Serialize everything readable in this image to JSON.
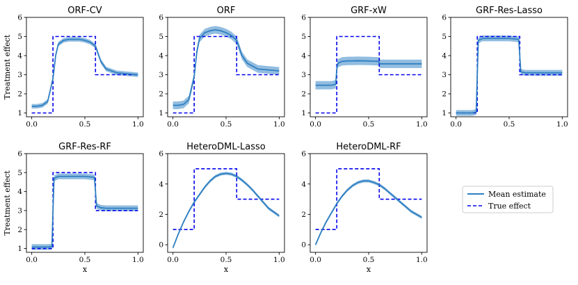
{
  "colors": {
    "mean": "#2f7fc1",
    "band": "#7fb2da",
    "true": "#0000ee",
    "axis": "#000000"
  },
  "legend": {
    "position": "center-right",
    "mean_label": "Mean estimate",
    "true_label": "True effect"
  },
  "chart_data": [
    {
      "type": "line",
      "title": "ORF-CV",
      "xlabel": "",
      "ylabel": "Treatment effect",
      "xlim": [
        -0.05,
        1.05
      ],
      "ylim": [
        0.8,
        6.0
      ],
      "xticks": [
        "0.0",
        "0.5",
        "1.0"
      ],
      "yticks": [
        "1",
        "2",
        "3",
        "4",
        "5",
        "6"
      ],
      "x": [
        0,
        0.05,
        0.1,
        0.15,
        0.2,
        0.225,
        0.25,
        0.3,
        0.35,
        0.4,
        0.45,
        0.5,
        0.55,
        0.6,
        0.65,
        0.7,
        0.8,
        0.9,
        1.0
      ],
      "mean": [
        1.35,
        1.35,
        1.4,
        1.6,
        2.8,
        4.0,
        4.6,
        4.8,
        4.85,
        4.85,
        4.85,
        4.8,
        4.7,
        4.5,
        3.7,
        3.3,
        3.1,
        3.05,
        3.0
      ],
      "band_halfwidth": 0.12,
      "true_effect": {
        "x": [
          0,
          0.2,
          0.2,
          0.6,
          0.6,
          1.0
        ],
        "y": [
          1,
          1,
          5,
          5,
          3,
          3
        ]
      }
    },
    {
      "type": "line",
      "title": "ORF",
      "xlabel": "",
      "ylabel": "",
      "xlim": [
        -0.05,
        1.05
      ],
      "ylim": [
        0.8,
        6.0
      ],
      "xticks": [
        "0.0",
        "0.5",
        "1.0"
      ],
      "yticks": [
        "1",
        "2",
        "3",
        "4",
        "5",
        "6"
      ],
      "x": [
        0,
        0.05,
        0.1,
        0.15,
        0.2,
        0.225,
        0.25,
        0.3,
        0.35,
        0.4,
        0.45,
        0.5,
        0.55,
        0.6,
        0.65,
        0.7,
        0.8,
        0.9,
        1.0
      ],
      "mean": [
        1.4,
        1.4,
        1.45,
        1.7,
        2.9,
        4.2,
        4.9,
        5.2,
        5.3,
        5.35,
        5.3,
        5.2,
        5.05,
        4.8,
        4.0,
        3.6,
        3.3,
        3.25,
        3.2
      ],
      "band_halfwidth": 0.2,
      "true_effect": {
        "x": [
          0,
          0.2,
          0.2,
          0.6,
          0.6,
          1.0
        ],
        "y": [
          1,
          1,
          5,
          5,
          3,
          3
        ]
      }
    },
    {
      "type": "line",
      "title": "GRF-xW",
      "xlabel": "",
      "ylabel": "",
      "xlim": [
        -0.05,
        1.05
      ],
      "ylim": [
        0.8,
        6.0
      ],
      "xticks": [
        "0.0",
        "0.5",
        "1.0"
      ],
      "yticks": [
        "1",
        "2",
        "3",
        "4",
        "5",
        "6"
      ],
      "x": [
        0,
        0.05,
        0.1,
        0.15,
        0.19,
        0.2,
        0.21,
        0.25,
        0.3,
        0.4,
        0.5,
        0.59,
        0.6,
        0.61,
        0.7,
        0.8,
        0.9,
        1.0
      ],
      "mean": [
        2.45,
        2.45,
        2.45,
        2.45,
        2.5,
        3.3,
        3.6,
        3.7,
        3.72,
        3.73,
        3.72,
        3.7,
        3.62,
        3.57,
        3.57,
        3.57,
        3.57,
        3.57
      ],
      "band_halfwidth": 0.22,
      "true_effect": {
        "x": [
          0,
          0.2,
          0.2,
          0.6,
          0.6,
          1.0
        ],
        "y": [
          1,
          1,
          5,
          5,
          3,
          3
        ]
      }
    },
    {
      "type": "line",
      "title": "GRF-Res-Lasso",
      "xlabel": "",
      "ylabel": "",
      "xlim": [
        -0.05,
        1.05
      ],
      "ylim": [
        0.8,
        6.0
      ],
      "xticks": [
        "0.0",
        "0.5",
        "1.0"
      ],
      "yticks": [
        "1",
        "2",
        "3",
        "4",
        "5",
        "6"
      ],
      "x": [
        0,
        0.05,
        0.1,
        0.15,
        0.19,
        0.2,
        0.21,
        0.25,
        0.3,
        0.4,
        0.5,
        0.59,
        0.6,
        0.61,
        0.65,
        0.7,
        0.8,
        0.9,
        1.0
      ],
      "mean": [
        1.0,
        1.0,
        1.0,
        1.0,
        1.05,
        3.0,
        4.8,
        4.9,
        4.9,
        4.9,
        4.9,
        4.85,
        4.0,
        3.15,
        3.1,
        3.1,
        3.1,
        3.1,
        3.1
      ],
      "band_halfwidth": 0.15,
      "true_effect": {
        "x": [
          0,
          0.2,
          0.2,
          0.6,
          0.6,
          1.0
        ],
        "y": [
          1,
          1,
          5,
          5,
          3,
          3
        ]
      }
    },
    {
      "type": "line",
      "title": "GRF-Res-RF",
      "xlabel": "x",
      "ylabel": "Treatment effect",
      "xlim": [
        -0.05,
        1.05
      ],
      "ylim": [
        0.8,
        6.0
      ],
      "xticks": [
        "0.0",
        "0.5",
        "1.0"
      ],
      "yticks": [
        "1",
        "2",
        "3",
        "4",
        "5",
        "6"
      ],
      "x": [
        0,
        0.05,
        0.1,
        0.15,
        0.19,
        0.2,
        0.21,
        0.25,
        0.3,
        0.4,
        0.5,
        0.59,
        0.6,
        0.61,
        0.65,
        0.7,
        0.8,
        0.9,
        1.0
      ],
      "mean": [
        1.08,
        1.08,
        1.08,
        1.08,
        1.1,
        3.0,
        4.7,
        4.8,
        4.8,
        4.8,
        4.8,
        4.75,
        4.0,
        3.25,
        3.15,
        3.12,
        3.12,
        3.12,
        3.12
      ],
      "band_halfwidth": 0.15,
      "true_effect": {
        "x": [
          0,
          0.2,
          0.2,
          0.6,
          0.6,
          1.0
        ],
        "y": [
          1,
          1,
          5,
          5,
          3,
          3
        ]
      }
    },
    {
      "type": "line",
      "title": "HeteroDML-Lasso",
      "xlabel": "x",
      "ylabel": "",
      "xlim": [
        -0.05,
        1.05
      ],
      "ylim": [
        -0.5,
        6.0
      ],
      "xticks": [
        "0.0",
        "0.5",
        "1.0"
      ],
      "yticks": [
        "0",
        "2",
        "4",
        "6"
      ],
      "x": [
        0,
        0.05,
        0.1,
        0.15,
        0.2,
        0.25,
        0.3,
        0.35,
        0.4,
        0.45,
        0.5,
        0.55,
        0.6,
        0.65,
        0.7,
        0.75,
        0.8,
        0.85,
        0.9,
        0.95,
        1.0
      ],
      "mean": [
        -0.2,
        0.7,
        1.5,
        2.2,
        2.8,
        3.3,
        3.8,
        4.2,
        4.5,
        4.65,
        4.7,
        4.65,
        4.5,
        4.25,
        3.95,
        3.6,
        3.2,
        2.8,
        2.4,
        2.15,
        1.9
      ],
      "band_halfwidth": 0.1,
      "true_effect": {
        "x": [
          0,
          0.2,
          0.2,
          0.6,
          0.6,
          1.0
        ],
        "y": [
          1,
          1,
          5,
          5,
          3,
          3
        ]
      }
    },
    {
      "type": "line",
      "title": "HeteroDML-RF",
      "xlabel": "x",
      "ylabel": "",
      "xlim": [
        -0.05,
        1.05
      ],
      "ylim": [
        -0.5,
        6.0
      ],
      "xticks": [
        "0.0",
        "0.5",
        "1.0"
      ],
      "yticks": [
        "0",
        "2",
        "4",
        "6"
      ],
      "x": [
        0,
        0.05,
        0.1,
        0.15,
        0.2,
        0.25,
        0.3,
        0.35,
        0.4,
        0.45,
        0.5,
        0.55,
        0.6,
        0.65,
        0.7,
        0.75,
        0.8,
        0.85,
        0.9,
        0.95,
        1.0
      ],
      "mean": [
        0.0,
        0.8,
        1.5,
        2.1,
        2.7,
        3.2,
        3.6,
        3.9,
        4.1,
        4.2,
        4.2,
        4.1,
        3.95,
        3.7,
        3.4,
        3.1,
        2.8,
        2.5,
        2.2,
        2.0,
        1.8
      ],
      "band_halfwidth": 0.1,
      "true_effect": {
        "x": [
          0,
          0.2,
          0.2,
          0.6,
          0.6,
          1.0
        ],
        "y": [
          1,
          1,
          5,
          5,
          3,
          3
        ]
      }
    }
  ]
}
